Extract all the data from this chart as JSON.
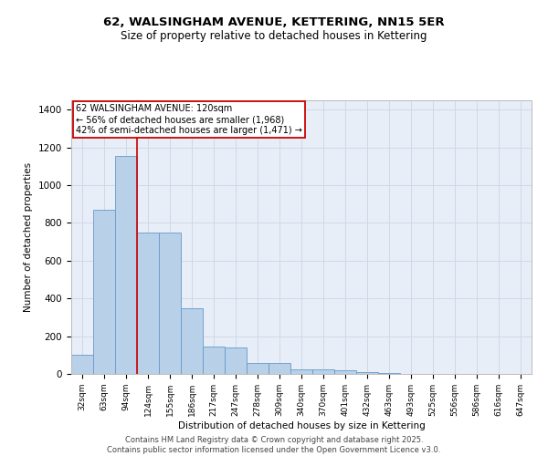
{
  "title1": "62, WALSINGHAM AVENUE, KETTERING, NN15 5ER",
  "title2": "Size of property relative to detached houses in Kettering",
  "xlabel": "Distribution of detached houses by size in Kettering",
  "ylabel": "Number of detached properties",
  "categories": [
    "32sqm",
    "63sqm",
    "94sqm",
    "124sqm",
    "155sqm",
    "186sqm",
    "217sqm",
    "247sqm",
    "278sqm",
    "309sqm",
    "340sqm",
    "370sqm",
    "401sqm",
    "432sqm",
    "463sqm",
    "493sqm",
    "525sqm",
    "556sqm",
    "586sqm",
    "616sqm",
    "647sqm"
  ],
  "values": [
    100,
    870,
    1155,
    750,
    750,
    350,
    145,
    140,
    60,
    60,
    25,
    25,
    20,
    10,
    5,
    2,
    0,
    0,
    0,
    0,
    0
  ],
  "bar_color": "#b8d0e8",
  "bar_edge_color": "#6699cc",
  "bg_color": "#e8eef8",
  "red_line_x": 2.5,
  "annotation_text": "62 WALSINGHAM AVENUE: 120sqm\n← 56% of detached houses are smaller (1,968)\n42% of semi-detached houses are larger (1,471) →",
  "annotation_box_color": "#cc0000",
  "ylim": [
    0,
    1450
  ],
  "yticks": [
    0,
    200,
    400,
    600,
    800,
    1000,
    1200,
    1400
  ],
  "footer": "Contains HM Land Registry data © Crown copyright and database right 2025.\nContains public sector information licensed under the Open Government Licence v3.0.",
  "grid_color": "#d0d8e8"
}
